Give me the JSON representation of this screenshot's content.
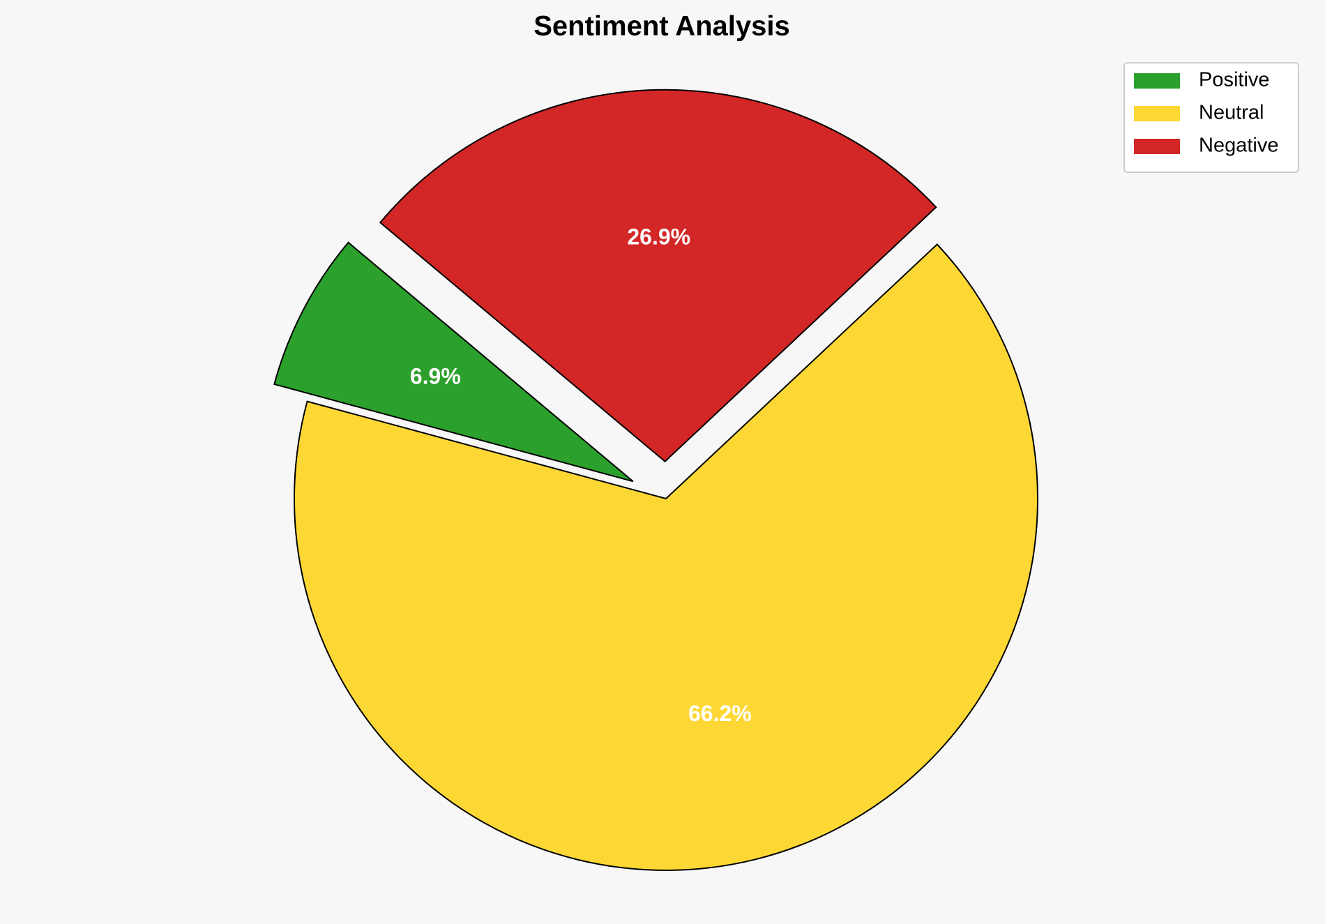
{
  "chart_data": {
    "type": "pie",
    "title": "Sentiment Analysis",
    "categories": [
      "Positive",
      "Neutral",
      "Negative"
    ],
    "values": [
      6.9,
      66.2,
      26.9
    ],
    "value_labels": [
      "6.9%",
      "66.2%",
      "26.9%"
    ],
    "colors": [
      "#2ca02c",
      "#fdd835",
      "#d32626"
    ],
    "startangle": 140,
    "explode": [
      0.1,
      0,
      0.1
    ],
    "legend": "upper right"
  }
}
